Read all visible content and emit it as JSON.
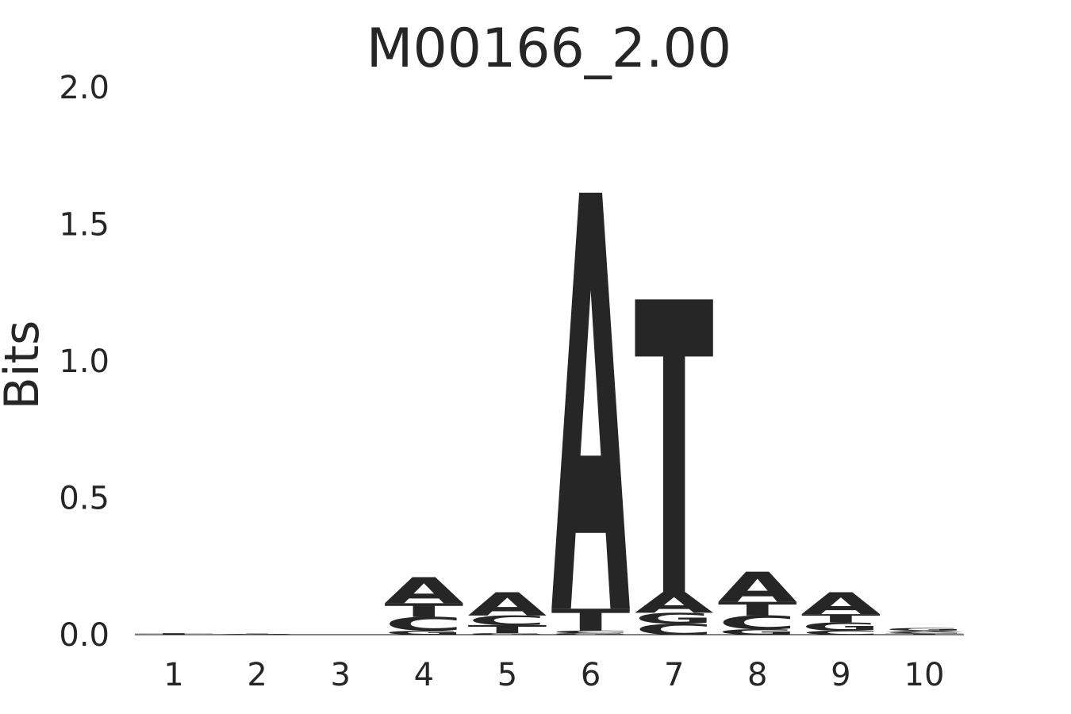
{
  "chart_data": {
    "type": "logo",
    "title": "M00166_2.00",
    "ylabel": "Bits",
    "categories": [
      "1",
      "2",
      "3",
      "4",
      "5",
      "6",
      "7",
      "8",
      "9",
      "10"
    ],
    "series": [
      {
        "name": "A",
        "color": "#008000",
        "values": [
          0.0005,
          0.001,
          0,
          0.095,
          0.085,
          1.52,
          0.075,
          0.11,
          0.08,
          0.006
        ]
      },
      {
        "name": "C",
        "color": "#0000ff",
        "values": [
          0.0005,
          0.001,
          0,
          0.05,
          0.035,
          0.01,
          0.04,
          0.05,
          0.015,
          0.005
        ]
      },
      {
        "name": "G",
        "color": "#ffa500",
        "values": [
          0.0005,
          0.001,
          0,
          0.015,
          0.005,
          0.005,
          0.04,
          0.02,
          0.03,
          0.01
        ]
      },
      {
        "name": "T",
        "color": "#ff0000",
        "values": [
          0.004,
          0.001,
          0,
          0.05,
          0.03,
          0.08,
          1.07,
          0.05,
          0.03,
          0.004
        ]
      }
    ],
    "ylim": [
      0,
      2
    ],
    "yticks": [
      {
        "value": 0,
        "label": "0.0"
      },
      {
        "value": 0.5,
        "label": "0.5"
      },
      {
        "value": 1,
        "label": "1.0"
      },
      {
        "value": 1.5,
        "label": "1.5"
      },
      {
        "value": 2,
        "label": "2.0"
      }
    ]
  }
}
